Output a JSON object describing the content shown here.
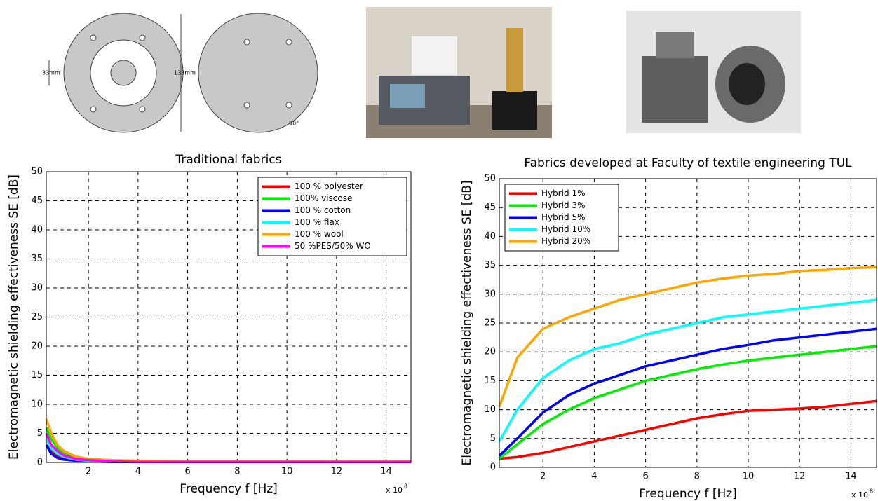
{
  "diagram": {
    "labels": [
      "33mm",
      "133mm",
      "90°"
    ]
  },
  "chart_data": [
    {
      "type": "line",
      "title": "Traditional fabrics",
      "xlabel": "Frequency f [Hz]",
      "ylabel": "Electromagnetic shielding effectiveness SE [dB]",
      "x_multiplier": "x 10",
      "x_exponent": "8",
      "xlim": [
        0.3,
        15
      ],
      "ylim": [
        0,
        50
      ],
      "xticks": [
        2,
        4,
        6,
        8,
        10,
        12,
        14
      ],
      "yticks": [
        0,
        5,
        10,
        15,
        20,
        25,
        30,
        35,
        40,
        45,
        50
      ],
      "grid": true,
      "legend": "upper right",
      "x": [
        0.3,
        0.5,
        0.75,
        1,
        1.5,
        2,
        3,
        4,
        6,
        8,
        10,
        12,
        14,
        15
      ],
      "series": [
        {
          "name": "100 % polyester",
          "color": "#ff0000",
          "values": [
            3,
            2,
            1.2,
            0.8,
            0.4,
            0.3,
            0.2,
            0.1,
            0.1,
            0.1,
            0.1,
            0.1,
            0.1,
            0.1
          ]
        },
        {
          "name": "100% viscose",
          "color": "#00ee00",
          "values": [
            6,
            4,
            2.5,
            1.5,
            0.8,
            0.5,
            0.3,
            0.2,
            0.1,
            0.1,
            0.1,
            0.1,
            0.1,
            0.1
          ]
        },
        {
          "name": "100 % cotton",
          "color": "#0000ff",
          "values": [
            3,
            1.5,
            0.8,
            0.5,
            0.3,
            0.2,
            0.1,
            0.1,
            0.1,
            0.1,
            0.1,
            0.1,
            0.1,
            0.1
          ]
        },
        {
          "name": "100 % flax",
          "color": "#00ffff",
          "values": [
            4,
            2.5,
            1.5,
            1,
            0.5,
            0.3,
            0.2,
            0.1,
            0.1,
            0.1,
            0.1,
            0.1,
            0.1,
            0.1
          ]
        },
        {
          "name": "100 % wool",
          "color": "#ffa500",
          "values": [
            7.5,
            5,
            3,
            2,
            1,
            0.6,
            0.4,
            0.3,
            0.2,
            0.2,
            0.2,
            0.2,
            0.2,
            0.2
          ]
        },
        {
          "name": "50 %PES/50% WO",
          "color": "#ff00ff",
          "values": [
            5,
            3,
            2,
            1.2,
            0.6,
            0.4,
            0.2,
            0.1,
            0.1,
            0.1,
            0.1,
            0.1,
            0.1,
            0.1
          ]
        }
      ]
    },
    {
      "type": "line",
      "title": "Fabrics developed at Faculty of textile engineering TUL",
      "xlabel": "Frequency f [Hz]",
      "ylabel": "Electromagnetic shielding effectiveness SE [dB]",
      "x_multiplier": "x 10",
      "x_exponent": "8",
      "xlim": [
        0.3,
        15
      ],
      "ylim": [
        0,
        50
      ],
      "xticks": [
        2,
        4,
        6,
        8,
        10,
        12,
        14
      ],
      "yticks": [
        0,
        5,
        10,
        15,
        20,
        25,
        30,
        35,
        40,
        45,
        50
      ],
      "grid": true,
      "legend": "upper left",
      "x": [
        0.3,
        1,
        2,
        3,
        4,
        5,
        6,
        7,
        8,
        9,
        10,
        11,
        12,
        13,
        14,
        15
      ],
      "series": [
        {
          "name": "Hybrid 1%",
          "color": "#ff0000",
          "values": [
            1.5,
            1.8,
            2.5,
            3.5,
            4.5,
            5.5,
            6.5,
            7.5,
            8.5,
            9.2,
            9.8,
            10,
            10.2,
            10.5,
            11,
            11.5
          ]
        },
        {
          "name": "Hybrid 3%",
          "color": "#00ee00",
          "values": [
            1.5,
            4,
            7.5,
            10,
            12,
            13.5,
            15,
            16,
            17,
            17.8,
            18.5,
            19,
            19.5,
            20,
            20.5,
            21
          ]
        },
        {
          "name": "Hybrid 5%",
          "color": "#0000ff",
          "values": [
            2,
            5,
            9.5,
            12.5,
            14.5,
            16,
            17.5,
            18.5,
            19.5,
            20.5,
            21.2,
            22,
            22.5,
            23,
            23.5,
            24
          ]
        },
        {
          "name": "Hybrid 10%",
          "color": "#00ffff",
          "values": [
            4.5,
            10,
            15.5,
            18.5,
            20.5,
            21.5,
            23,
            24,
            25,
            26,
            26.5,
            27,
            27.5,
            28,
            28.5,
            29
          ]
        },
        {
          "name": "Hybrid 20%",
          "color": "#ffa500",
          "values": [
            10.5,
            19,
            24,
            26,
            27.5,
            29,
            30,
            31,
            32,
            32.7,
            33.2,
            33.5,
            34,
            34.2,
            34.5,
            34.7
          ]
        }
      ]
    }
  ]
}
